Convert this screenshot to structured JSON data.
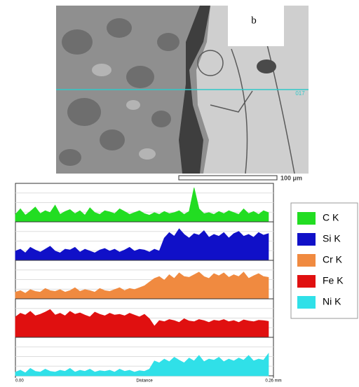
{
  "image": {
    "panel_label": "b",
    "line_label": "017",
    "scale_bar": "100 μm"
  },
  "chart_data": {
    "type": "area",
    "xlabel": "Distance",
    "xlim": [
      0,
      0.26
    ],
    "xticks": [
      {
        "value": 0,
        "label": "0.00"
      },
      {
        "value": 0.26,
        "label": "0.26 mm"
      }
    ],
    "grid": true,
    "x": [
      0,
      0.005,
      0.01,
      0.015,
      0.02,
      0.025,
      0.03,
      0.035,
      0.04,
      0.045,
      0.05,
      0.055,
      0.06,
      0.065,
      0.07,
      0.075,
      0.08,
      0.085,
      0.09,
      0.095,
      0.1,
      0.105,
      0.11,
      0.115,
      0.12,
      0.125,
      0.13,
      0.135,
      0.14,
      0.145,
      0.15,
      0.155,
      0.16,
      0.165,
      0.17,
      0.175,
      0.18,
      0.185,
      0.19,
      0.195,
      0.2,
      0.205,
      0.21,
      0.215,
      0.22,
      0.225,
      0.23,
      0.235,
      0.24,
      0.245,
      0.25,
      0.255
    ],
    "series": [
      {
        "name": "C K",
        "color": "#22dd22",
        "ylim": [
          0,
          100
        ],
        "values": [
          20,
          35,
          18,
          28,
          40,
          22,
          30,
          25,
          45,
          20,
          28,
          33,
          22,
          30,
          18,
          38,
          25,
          20,
          30,
          27,
          22,
          35,
          28,
          20,
          25,
          30,
          22,
          18,
          25,
          20,
          28,
          22,
          25,
          30,
          20,
          28,
          92,
          35,
          22,
          25,
          20,
          28,
          22,
          30,
          25,
          20,
          35,
          22,
          28,
          20,
          30,
          25
        ]
      },
      {
        "name": "Si K",
        "color": "#1010c8",
        "ylim": [
          0,
          100
        ],
        "values": [
          25,
          30,
          20,
          35,
          28,
          22,
          30,
          38,
          25,
          20,
          30,
          28,
          35,
          22,
          30,
          25,
          20,
          28,
          32,
          25,
          30,
          22,
          28,
          35,
          25,
          30,
          28,
          22,
          30,
          25,
          60,
          75,
          65,
          85,
          70,
          60,
          72,
          68,
          80,
          62,
          70,
          65,
          75,
          60,
          72,
          78,
          65,
          70,
          62,
          75,
          68,
          72
        ]
      },
      {
        "name": "Cr K",
        "color": "#f08a40",
        "ylim": [
          0,
          100
        ],
        "values": [
          18,
          22,
          15,
          25,
          20,
          18,
          28,
          22,
          20,
          25,
          18,
          22,
          30,
          20,
          25,
          22,
          18,
          28,
          22,
          20,
          25,
          30,
          22,
          28,
          25,
          30,
          35,
          45,
          55,
          60,
          50,
          65,
          55,
          70,
          60,
          58,
          65,
          72,
          60,
          55,
          68,
          62,
          70,
          58,
          65,
          60,
          72,
          55,
          62,
          68,
          60,
          58
        ]
      },
      {
        "name": "Fe K",
        "color": "#e01010",
        "ylim": [
          0,
          100
        ],
        "values": [
          55,
          65,
          60,
          70,
          58,
          62,
          68,
          75,
          60,
          65,
          58,
          70,
          62,
          66,
          60,
          55,
          68,
          62,
          58,
          65,
          60,
          62,
          58,
          65,
          60,
          55,
          62,
          50,
          30,
          45,
          42,
          48,
          45,
          40,
          50,
          44,
          42,
          48,
          45,
          40,
          46,
          44,
          48,
          42,
          45,
          40,
          47,
          44,
          42,
          46,
          45,
          43
        ]
      },
      {
        "name": "Ni K",
        "color": "#30e0e8",
        "ylim": [
          0,
          100
        ],
        "values": [
          10,
          15,
          8,
          20,
          12,
          10,
          18,
          12,
          10,
          15,
          12,
          20,
          10,
          15,
          12,
          18,
          10,
          14,
          12,
          15,
          10,
          18,
          12,
          15,
          10,
          14,
          12,
          18,
          40,
          35,
          45,
          38,
          50,
          42,
          35,
          48,
          40,
          55,
          38,
          45,
          42,
          50,
          38,
          45,
          40,
          48,
          42,
          55,
          40,
          45,
          42,
          60
        ]
      }
    ]
  }
}
